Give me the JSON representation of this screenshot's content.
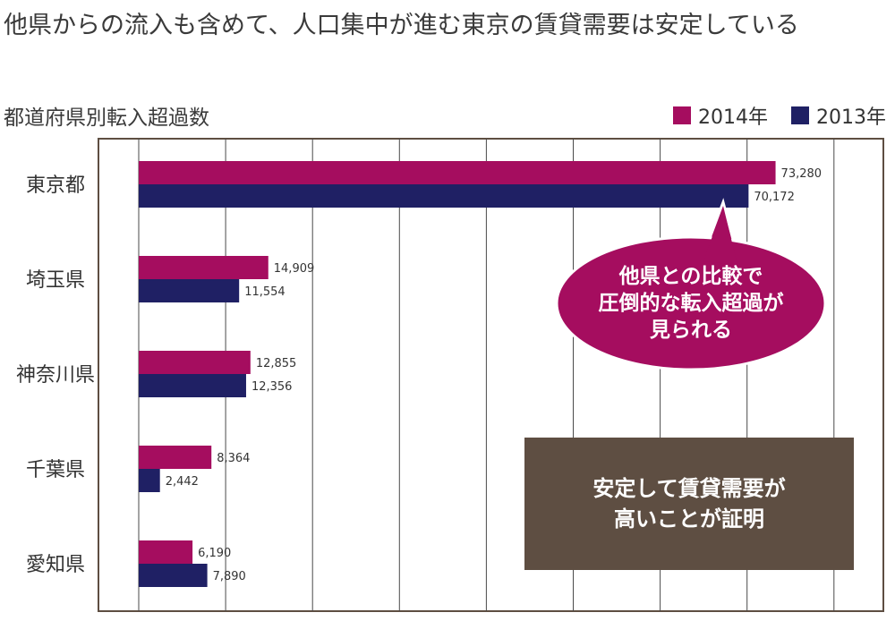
{
  "title": "他県からの流入も含めて、人口集中が進む東京の賃貸需要は安定している",
  "chart_data": {
    "type": "bar",
    "orientation": "horizontal",
    "title": "他県からの流入も含めて、人口集中が進む東京の賃貸需要は安定している",
    "subtitle": "都道府県別転入超過数",
    "categories": [
      "東京都",
      "埼玉県",
      "神奈川県",
      "千葉県",
      "愛知県"
    ],
    "series": [
      {
        "name": "2014年",
        "values": [
          73280,
          14909,
          12855,
          8364,
          6190
        ],
        "labels": [
          "73,280",
          "14,909",
          "12,855",
          "8,364",
          "6,190"
        ],
        "color": "#a50d5f"
      },
      {
        "name": "2013年",
        "values": [
          70172,
          11554,
          12356,
          2442,
          7890
        ],
        "labels": [
          "70,172",
          "11,554",
          "12,356",
          "2,442",
          "7,890"
        ],
        "color": "#1f2064"
      }
    ],
    "xlim": [
      0,
      80000
    ],
    "x_grid_step": 10000,
    "grid": true,
    "legend_position": "top-right"
  },
  "callouts": {
    "bubble_lines": [
      "他県との比較で",
      "圧倒的な転入超過が",
      "見られる"
    ],
    "box_lines": [
      "安定して賃貸需要が",
      "高いことが証明"
    ],
    "bubble_color": "#a50d5f",
    "box_color": "#5e4e42"
  },
  "colors": {
    "frame": "#5e4e42",
    "grid": "#4a4a4a"
  }
}
